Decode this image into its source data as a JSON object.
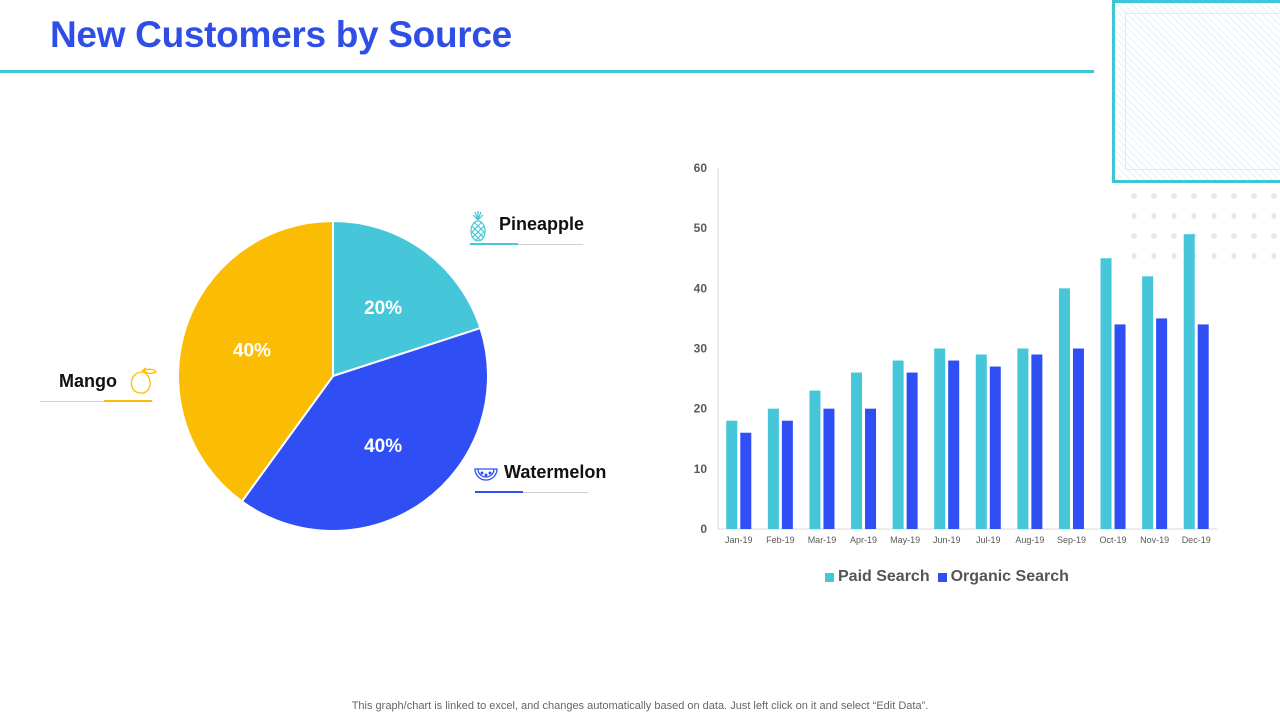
{
  "title": "New Customers by Source",
  "footnote": "This graph/chart is linked to excel,  and changes automatically based on data. Just left click on it and select “Edit Data”.",
  "colors": {
    "title": "#2e4ee6",
    "accent_rule": "#3fc6d6",
    "pineapple": "#45c6d9",
    "watermelon": "#2f4ff5",
    "mango": "#fbbd04",
    "paid_search": "#45c6d9",
    "organic_search": "#2f4ff5"
  },
  "icons": {
    "pineapple": "pineapple-icon",
    "watermelon": "watermelon-icon",
    "mango": "mango-icon"
  },
  "chart_data": [
    {
      "type": "pie",
      "title": "",
      "slices": [
        {
          "label": "Pineapple",
          "value": 20,
          "display": "20%"
        },
        {
          "label": "Watermelon",
          "value": 40,
          "display": "40%"
        },
        {
          "label": "Mango",
          "value": 40,
          "display": "40%"
        }
      ]
    },
    {
      "type": "bar",
      "title": "",
      "xlabel": "",
      "ylabel": "",
      "categories": [
        "Jan-19",
        "Feb-19",
        "Mar-19",
        "Apr-19",
        "May-19",
        "Jun-19",
        "Jul-19",
        "Aug-19",
        "Sep-19",
        "Oct-19",
        "Nov-19",
        "Dec-19"
      ],
      "series": [
        {
          "name": "Paid Search",
          "values": [
            18,
            20,
            23,
            26,
            28,
            30,
            29,
            30,
            40,
            45,
            42,
            49
          ]
        },
        {
          "name": "Organic Search",
          "values": [
            16,
            18,
            20,
            20,
            26,
            28,
            27,
            29,
            30,
            34,
            35,
            34
          ]
        }
      ],
      "ylim": [
        0,
        60
      ],
      "yticks": [
        0,
        10,
        20,
        30,
        40,
        50,
        60
      ],
      "grid": false,
      "legend": "bottom"
    }
  ]
}
